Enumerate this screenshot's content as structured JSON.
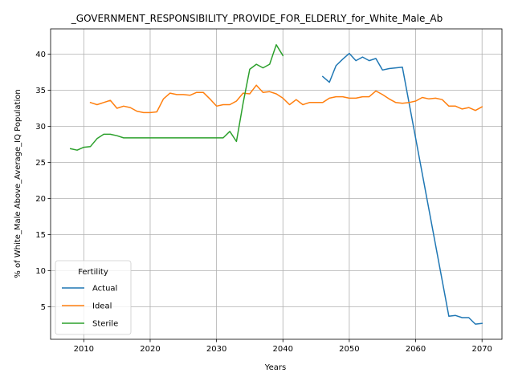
{
  "chart_data": {
    "type": "line",
    "title": "_GOVERNMENT_RESPONSIBILITY_PROVIDE_FOR_ELDERLY_for_White_Male_Ab",
    "xlabel": "Years",
    "ylabel": "% of White_Male Above_Average_IQ Population",
    "xlim": [
      2005,
      2073
    ],
    "ylim": [
      0.5,
      43.5
    ],
    "xticks": [
      2010,
      2020,
      2030,
      2040,
      2050,
      2060,
      2070
    ],
    "yticks": [
      5,
      10,
      15,
      20,
      25,
      30,
      35,
      40
    ],
    "grid": true,
    "legend": {
      "title": "Fertility",
      "placement": "lower-left"
    },
    "series": [
      {
        "name": "Actual",
        "color": "#1f77b4",
        "points": [
          [
            2046,
            36.9
          ],
          [
            2047,
            36.1
          ],
          [
            2048,
            38.4
          ],
          [
            2049,
            39.3
          ],
          [
            2050,
            40.1
          ],
          [
            2051,
            39.1
          ],
          [
            2052,
            39.6
          ],
          [
            2053,
            39.1
          ],
          [
            2054,
            39.4
          ],
          [
            2055,
            37.8
          ],
          [
            2056,
            38.0
          ],
          [
            2057,
            38.1
          ],
          [
            2058,
            38.2
          ],
          [
            2065,
            3.7
          ],
          [
            2066,
            3.8
          ],
          [
            2067,
            3.5
          ],
          [
            2068,
            3.5
          ],
          [
            2069,
            2.6
          ],
          [
            2070,
            2.7
          ]
        ]
      },
      {
        "name": "Ideal",
        "color": "#ff7f0e",
        "points": [
          [
            2011,
            33.3
          ],
          [
            2012,
            33.0
          ],
          [
            2013,
            33.3
          ],
          [
            2014,
            33.6
          ],
          [
            2015,
            32.5
          ],
          [
            2016,
            32.8
          ],
          [
            2017,
            32.6
          ],
          [
            2018,
            32.1
          ],
          [
            2019,
            31.9
          ],
          [
            2020,
            31.9
          ],
          [
            2021,
            32.0
          ],
          [
            2022,
            33.8
          ],
          [
            2023,
            34.6
          ],
          [
            2024,
            34.4
          ],
          [
            2025,
            34.4
          ],
          [
            2026,
            34.3
          ],
          [
            2027,
            34.7
          ],
          [
            2028,
            34.7
          ],
          [
            2029,
            33.8
          ],
          [
            2030,
            32.8
          ],
          [
            2031,
            33.0
          ],
          [
            2032,
            33.0
          ],
          [
            2033,
            33.5
          ],
          [
            2034,
            34.6
          ],
          [
            2035,
            34.5
          ],
          [
            2036,
            35.7
          ],
          [
            2037,
            34.7
          ],
          [
            2038,
            34.8
          ],
          [
            2039,
            34.5
          ],
          [
            2040,
            33.9
          ],
          [
            2041,
            33.0
          ],
          [
            2042,
            33.7
          ],
          [
            2043,
            33.0
          ],
          [
            2044,
            33.3
          ],
          [
            2045,
            33.3
          ],
          [
            2046,
            33.3
          ],
          [
            2047,
            33.9
          ],
          [
            2048,
            34.1
          ],
          [
            2049,
            34.1
          ],
          [
            2050,
            33.9
          ],
          [
            2051,
            33.9
          ],
          [
            2052,
            34.1
          ],
          [
            2053,
            34.1
          ],
          [
            2054,
            34.9
          ],
          [
            2055,
            34.4
          ],
          [
            2056,
            33.8
          ],
          [
            2057,
            33.3
          ],
          [
            2058,
            33.2
          ],
          [
            2059,
            33.3
          ],
          [
            2060,
            33.5
          ],
          [
            2061,
            34.0
          ],
          [
            2062,
            33.8
          ],
          [
            2063,
            33.9
          ],
          [
            2064,
            33.7
          ],
          [
            2065,
            32.8
          ],
          [
            2066,
            32.8
          ],
          [
            2067,
            32.4
          ],
          [
            2068,
            32.6
          ],
          [
            2069,
            32.2
          ],
          [
            2070,
            32.7
          ]
        ]
      },
      {
        "name": "Sterile",
        "color": "#2ca02c",
        "points": [
          [
            2008,
            26.9
          ],
          [
            2009,
            26.7
          ],
          [
            2010,
            27.1
          ],
          [
            2011,
            27.2
          ],
          [
            2012,
            28.3
          ],
          [
            2013,
            28.9
          ],
          [
            2014,
            28.9
          ],
          [
            2015,
            28.7
          ],
          [
            2016,
            28.4
          ],
          [
            2017,
            28.4
          ],
          [
            2018,
            28.4
          ],
          [
            2019,
            28.4
          ],
          [
            2020,
            28.4
          ],
          [
            2021,
            28.4
          ],
          [
            2022,
            28.4
          ],
          [
            2023,
            28.4
          ],
          [
            2024,
            28.4
          ],
          [
            2025,
            28.4
          ],
          [
            2026,
            28.4
          ],
          [
            2027,
            28.4
          ],
          [
            2028,
            28.4
          ],
          [
            2029,
            28.4
          ],
          [
            2030,
            28.4
          ],
          [
            2031,
            28.4
          ],
          [
            2032,
            29.3
          ],
          [
            2033,
            27.9
          ],
          [
            2034,
            33.2
          ],
          [
            2035,
            37.9
          ],
          [
            2036,
            38.6
          ],
          [
            2037,
            38.1
          ],
          [
            2038,
            38.6
          ],
          [
            2039,
            41.3
          ],
          [
            2040,
            39.8
          ]
        ]
      }
    ]
  }
}
